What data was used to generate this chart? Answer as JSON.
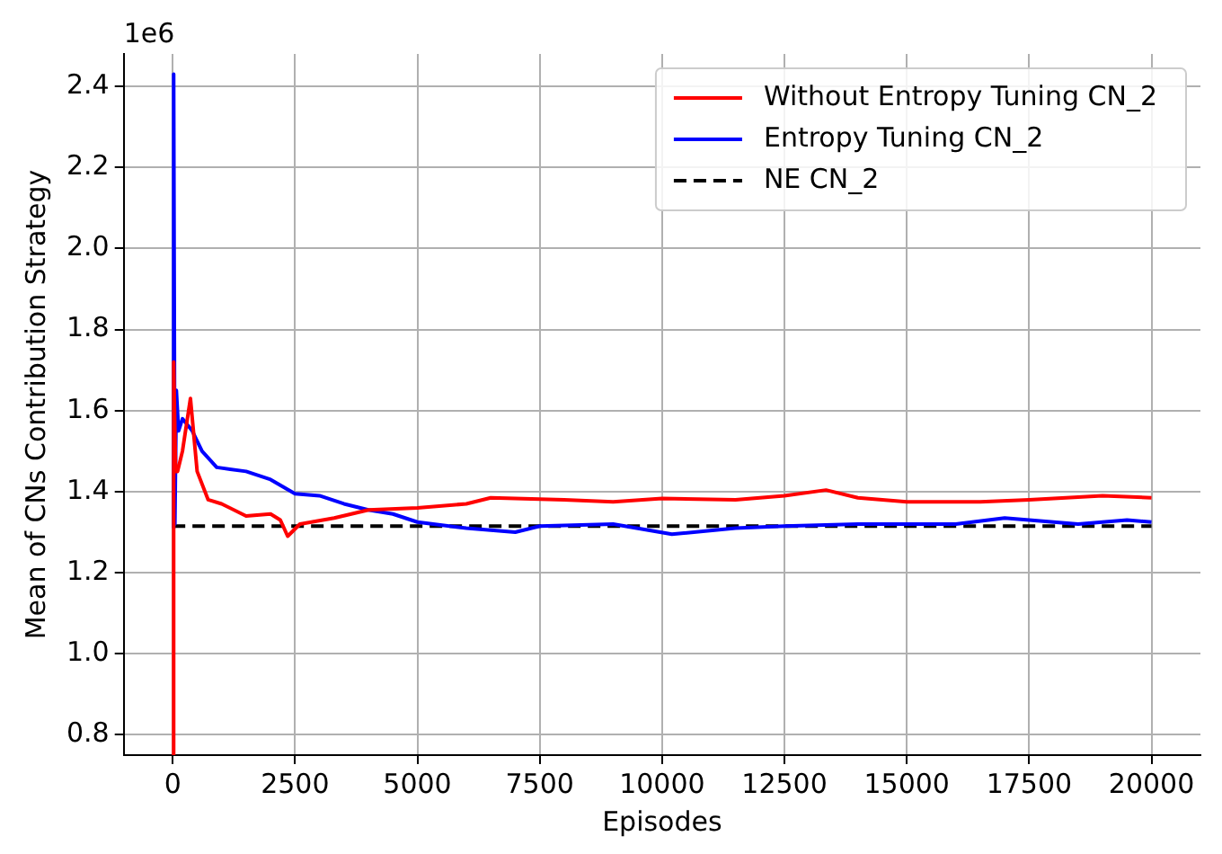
{
  "chart_data": {
    "type": "line",
    "xlabel": "Episodes",
    "ylabel": "Mean of CNs Contribution Strategy",
    "annotations": [
      "1e6"
    ],
    "xlim": [
      -1000,
      21000
    ],
    "xticks": [
      0,
      2500,
      5000,
      7500,
      10000,
      12500,
      15000,
      17500,
      20000
    ],
    "ylim": [
      0.75,
      2.48
    ],
    "yticks": [
      0.8,
      {
        "value": 1.0,
        "label": "1.0"
      },
      1.2,
      1.4,
      1.6,
      1.8,
      {
        "value": 2.0,
        "label": "2.0"
      },
      2.2,
      2.4
    ],
    "grid": true,
    "legend": "top right",
    "marker": "none",
    "series": [
      {
        "name": "Without Entropy Tuning CN_2",
        "color": "#ff0000",
        "line_style": "solid",
        "x": [
          0,
          20,
          60,
          100,
          200,
          363,
          500,
          725,
          1000,
          1500,
          2000,
          2200,
          2350,
          2600,
          3300,
          4000,
          5000,
          6000,
          6500,
          8000,
          9000,
          10000,
          11500,
          12500,
          13350,
          14000,
          15000,
          16500,
          17500,
          19000,
          20000
        ],
        "values": [
          0.75,
          1.72,
          1.45,
          1.45,
          1.5,
          1.63,
          1.45,
          1.38,
          1.37,
          1.34,
          1.345,
          1.33,
          1.29,
          1.32,
          1.335,
          1.355,
          1.36,
          1.37,
          1.385,
          1.38,
          1.375,
          1.383,
          1.38,
          1.39,
          1.404,
          1.385,
          1.375,
          1.375,
          1.38,
          1.39,
          1.385
        ]
      },
      {
        "name": "Entropy Tuning CN_2",
        "color": "#0000ff",
        "line_style": "solid",
        "x": [
          0,
          20,
          45,
          75,
          120,
          200,
          400,
          600,
          900,
          1500,
          2000,
          2500,
          3000,
          3500,
          4000,
          4500,
          5000,
          6000,
          7000,
          7500,
          9000,
          10200,
          11500,
          12500,
          14000,
          16000,
          17000,
          17500,
          18500,
          19500,
          20000
        ],
        "values": [
          1.31,
          2.43,
          1.32,
          1.65,
          1.55,
          1.58,
          1.55,
          1.5,
          1.46,
          1.45,
          1.43,
          1.395,
          1.39,
          1.37,
          1.355,
          1.345,
          1.325,
          1.31,
          1.3,
          1.315,
          1.32,
          1.295,
          1.31,
          1.315,
          1.32,
          1.32,
          1.335,
          1.33,
          1.32,
          1.33,
          1.325
        ]
      },
      {
        "name": "NE CN_2",
        "color": "#000000",
        "line_style": "dashed",
        "x": [
          0,
          20000
        ],
        "values": [
          1.315,
          1.315
        ]
      }
    ]
  }
}
